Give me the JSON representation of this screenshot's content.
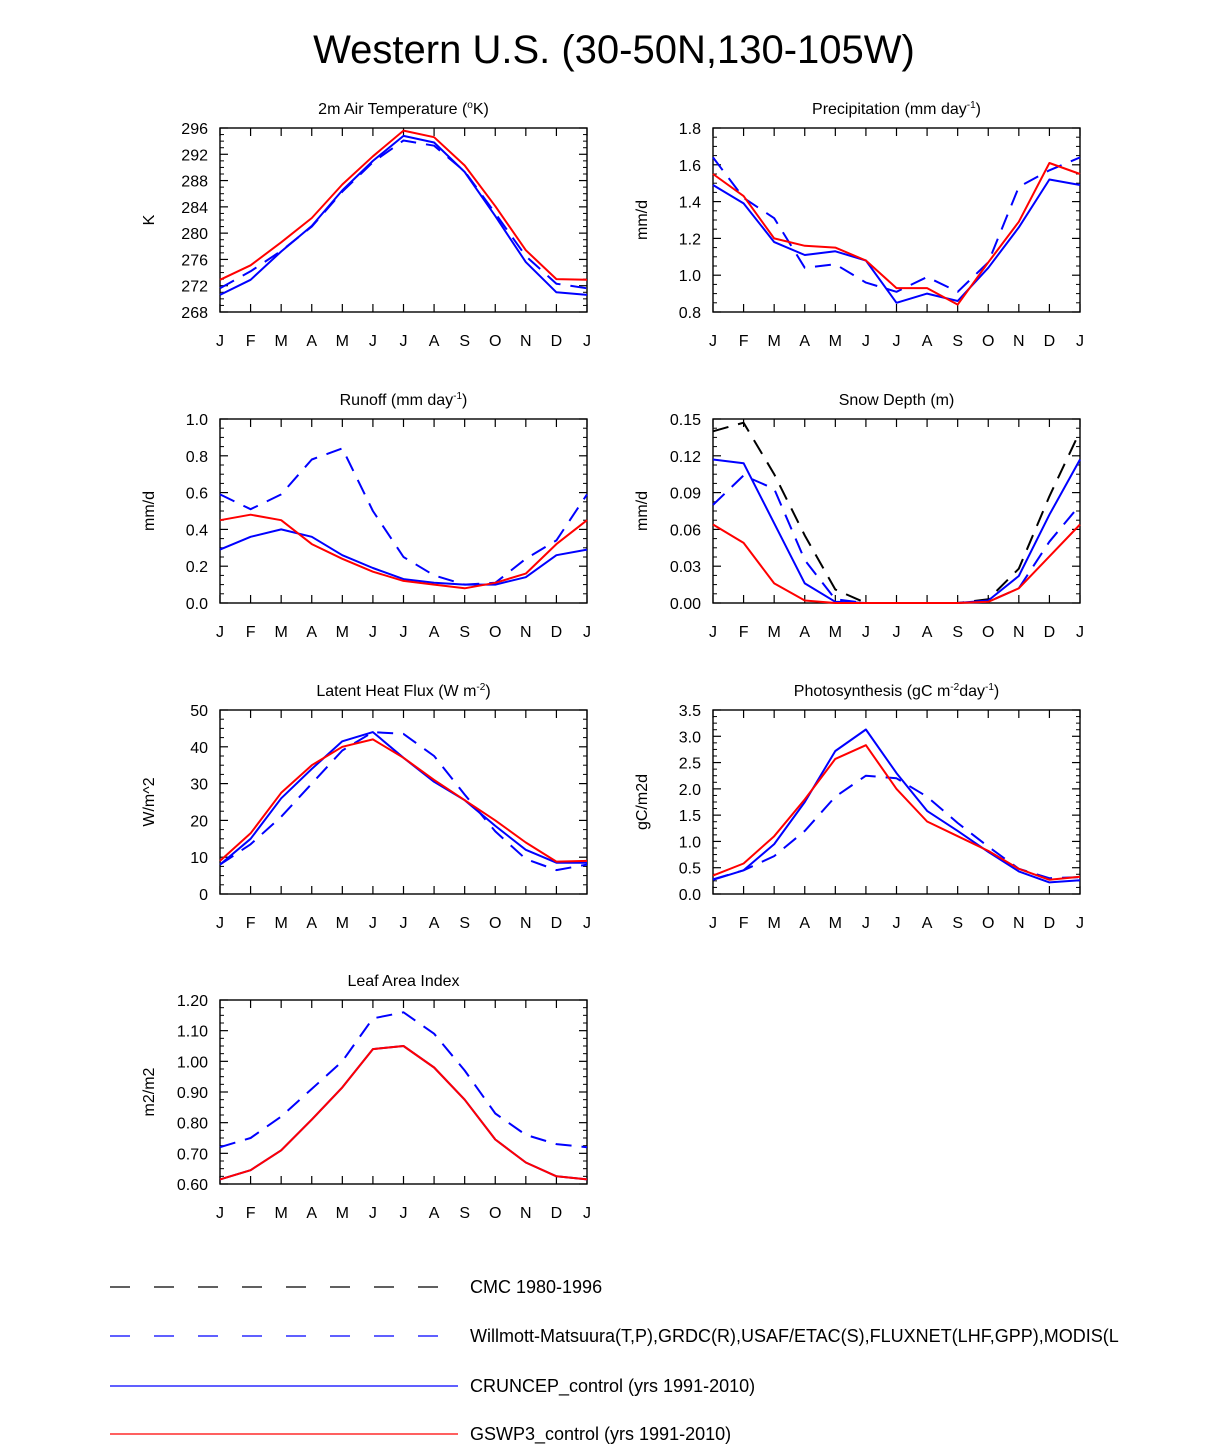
{
  "figure_title": "Western U.S. (30-50N,130-105W)",
  "months": [
    "J",
    "F",
    "M",
    "A",
    "M",
    "J",
    "J",
    "A",
    "S",
    "O",
    "N",
    "D",
    "J"
  ],
  "series_styles": {
    "cmc": {
      "color": "#000000",
      "dash": "16,10"
    },
    "obs": {
      "color": "#0000ff",
      "dash": "16,10"
    },
    "cruncep": {
      "color": "#0000ff",
      "dash": ""
    },
    "gswp3": {
      "color": "#ff0000",
      "dash": ""
    }
  },
  "legend": [
    {
      "key": "cmc",
      "label": "CMC 1980-1996"
    },
    {
      "key": "obs",
      "label": "Willmott-Matsuura(T,P),GRDC(R),USAF/ETAC(S),FLUXNET(LHF,GPP),MODIS(L"
    },
    {
      "key": "cruncep",
      "label": "CRUNCEP_control (yrs 1991-2010)"
    },
    {
      "key": "gswp3",
      "label": "GSWP3_control (yrs 1991-2010)"
    }
  ],
  "chart_data": [
    {
      "type": "line",
      "title": {
        "pre": "2m Air Temperature (",
        "sup": "o",
        "post": "K)"
      },
      "ylabel": "K",
      "ylim": [
        268,
        296
      ],
      "yticks": [
        "268",
        "272",
        "276",
        "280",
        "284",
        "288",
        "292",
        "296"
      ],
      "ytick_values": [
        268,
        272,
        276,
        280,
        284,
        288,
        292,
        296
      ],
      "categories": [
        "J",
        "F",
        "M",
        "A",
        "M",
        "J",
        "J",
        "A",
        "S",
        "O",
        "N",
        "D",
        "J"
      ],
      "series": [
        {
          "key": "obs",
          "name": "Willmott-Matsuura",
          "values": [
            271.6,
            274.2,
            277.3,
            281.0,
            286.3,
            290.8,
            294.1,
            293.3,
            289.4,
            283.0,
            276.5,
            272.3,
            271.6
          ]
        },
        {
          "key": "cruncep",
          "name": "CRUNCEP_control",
          "values": [
            270.6,
            272.9,
            277.2,
            281.1,
            286.5,
            291.0,
            294.8,
            293.8,
            289.3,
            282.6,
            275.6,
            271.0,
            270.6
          ]
        },
        {
          "key": "gswp3",
          "name": "GSWP3_control",
          "values": [
            272.9,
            275.1,
            278.6,
            282.3,
            287.4,
            291.7,
            295.6,
            294.6,
            290.3,
            284.1,
            277.4,
            273.0,
            272.9
          ]
        }
      ]
    },
    {
      "type": "line",
      "title": {
        "pre": "Precipitation (mm day",
        "sup": "-1",
        "post": ")"
      },
      "ylabel": "mm/d",
      "ylim": [
        0.8,
        1.8
      ],
      "yticks": [
        "0.8",
        "1.0",
        "1.2",
        "1.4",
        "1.6",
        "1.8"
      ],
      "ytick_values": [
        0.8,
        1.0,
        1.2,
        1.4,
        1.6,
        1.8
      ],
      "categories": [
        "J",
        "F",
        "M",
        "A",
        "M",
        "J",
        "J",
        "A",
        "S",
        "O",
        "N",
        "D",
        "J"
      ],
      "series": [
        {
          "key": "obs",
          "name": "Willmott-Matsuura",
          "values": [
            1.64,
            1.42,
            1.31,
            1.04,
            1.06,
            0.96,
            0.91,
            0.99,
            0.91,
            1.07,
            1.48,
            1.57,
            1.64
          ]
        },
        {
          "key": "cruncep",
          "name": "CRUNCEP_control",
          "values": [
            1.49,
            1.39,
            1.18,
            1.11,
            1.13,
            1.08,
            0.85,
            0.9,
            0.86,
            1.04,
            1.26,
            1.52,
            1.49
          ]
        },
        {
          "key": "gswp3",
          "name": "GSWP3_control",
          "values": [
            1.55,
            1.43,
            1.2,
            1.16,
            1.15,
            1.08,
            0.93,
            0.93,
            0.84,
            1.07,
            1.29,
            1.61,
            1.55
          ]
        }
      ]
    },
    {
      "type": "line",
      "title": {
        "pre": "Runoff (mm day",
        "sup": "-1",
        "post": ")"
      },
      "ylabel": "mm/d",
      "ylim": [
        0.0,
        1.0
      ],
      "yticks": [
        "0.0",
        "0.2",
        "0.4",
        "0.6",
        "0.8",
        "1.0"
      ],
      "ytick_values": [
        0,
        0.2,
        0.4,
        0.6,
        0.8,
        1.0
      ],
      "categories": [
        "J",
        "F",
        "M",
        "A",
        "M",
        "J",
        "J",
        "A",
        "S",
        "O",
        "N",
        "D",
        "J"
      ],
      "series": [
        {
          "key": "obs",
          "name": "GRDC",
          "values": [
            0.59,
            0.51,
            0.59,
            0.78,
            0.84,
            0.5,
            0.25,
            0.15,
            0.1,
            0.11,
            0.24,
            0.34,
            0.59
          ]
        },
        {
          "key": "cruncep",
          "name": "CRUNCEP_control",
          "values": [
            0.29,
            0.36,
            0.4,
            0.36,
            0.26,
            0.19,
            0.13,
            0.11,
            0.1,
            0.1,
            0.14,
            0.26,
            0.29
          ]
        },
        {
          "key": "gswp3",
          "name": "GSWP3_control",
          "values": [
            0.45,
            0.48,
            0.45,
            0.32,
            0.24,
            0.17,
            0.12,
            0.1,
            0.08,
            0.11,
            0.16,
            0.32,
            0.45
          ]
        }
      ]
    },
    {
      "type": "line",
      "title": {
        "pre": "Snow Depth (m)",
        "sup": "",
        "post": ""
      },
      "ylabel": "mm/d",
      "ylim": [
        0.0,
        0.15
      ],
      "yticks": [
        "0.00",
        "0.03",
        "0.06",
        "0.09",
        "0.12",
        "0.15"
      ],
      "ytick_values": [
        0,
        0.03,
        0.06,
        0.09,
        0.12,
        0.15
      ],
      "categories": [
        "J",
        "F",
        "M",
        "A",
        "M",
        "J",
        "J",
        "A",
        "S",
        "O",
        "N",
        "D",
        "J"
      ],
      "series": [
        {
          "key": "cmc",
          "name": "CMC",
          "values": [
            0.14,
            0.147,
            0.105,
            0.055,
            0.011,
            0.0,
            0.0,
            0.0,
            0.0,
            0.003,
            0.028,
            0.087,
            0.14
          ]
        },
        {
          "key": "obs",
          "name": "USAF/ETAC",
          "values": [
            0.08,
            0.104,
            0.093,
            0.035,
            0.003,
            0.0,
            0.0,
            0.0,
            0.0,
            0.001,
            0.012,
            0.05,
            0.08
          ]
        },
        {
          "key": "cruncep",
          "name": "CRUNCEP_control",
          "values": [
            0.117,
            0.114,
            0.065,
            0.016,
            0.001,
            0.0,
            0.0,
            0.0,
            0.0,
            0.002,
            0.022,
            0.072,
            0.117
          ]
        },
        {
          "key": "gswp3",
          "name": "GSWP3_control",
          "values": [
            0.064,
            0.049,
            0.016,
            0.002,
            0.0,
            0.0,
            0.0,
            0.0,
            0.0,
            0.001,
            0.012,
            0.038,
            0.064
          ]
        }
      ]
    },
    {
      "type": "line",
      "title": {
        "pre": "Latent Heat Flux (W m",
        "sup": "-2",
        "post": ")"
      },
      "ylabel": "W/m^2",
      "ylim": [
        0,
        50
      ],
      "yticks": [
        "0",
        "10",
        "20",
        "30",
        "40",
        "50"
      ],
      "ytick_values": [
        0,
        10,
        20,
        30,
        40,
        50
      ],
      "categories": [
        "J",
        "F",
        "M",
        "A",
        "M",
        "J",
        "J",
        "A",
        "S",
        "O",
        "N",
        "D",
        "J"
      ],
      "series": [
        {
          "key": "obs",
          "name": "FLUXNET",
          "values": [
            8.0,
            13.5,
            21.0,
            30.0,
            39.0,
            44.0,
            43.5,
            37.5,
            27.0,
            17.0,
            9.5,
            6.5,
            8.0
          ]
        },
        {
          "key": "cruncep",
          "name": "CRUNCEP_control",
          "values": [
            8.0,
            15.0,
            26.0,
            34.0,
            41.5,
            44.0,
            37.0,
            30.5,
            25.5,
            18.5,
            12.0,
            8.5,
            8.5
          ]
        },
        {
          "key": "gswp3",
          "name": "GSWP3_control",
          "values": [
            9.0,
            16.5,
            27.5,
            35.0,
            40.0,
            42.0,
            37.0,
            31.0,
            25.5,
            20.0,
            14.0,
            8.8,
            9.0
          ]
        }
      ]
    },
    {
      "type": "line",
      "title": {
        "pre": "Photosynthesis (gC m",
        "sup": "-2",
        "mid": "day",
        "sup2": "-1",
        "post": ")"
      },
      "ylabel": "gC/m2d",
      "ylim": [
        0.0,
        3.5
      ],
      "yticks": [
        "0.0",
        "0.5",
        "1.0",
        "1.5",
        "2.0",
        "2.5",
        "3.0",
        "3.5"
      ],
      "ytick_values": [
        0,
        0.5,
        1.0,
        1.5,
        2.0,
        2.5,
        3.0,
        3.5
      ],
      "categories": [
        "J",
        "F",
        "M",
        "A",
        "M",
        "J",
        "J",
        "A",
        "S",
        "O",
        "N",
        "D",
        "J"
      ],
      "series": [
        {
          "key": "obs",
          "name": "FLUXNET",
          "values": [
            0.28,
            0.45,
            0.72,
            1.2,
            1.85,
            2.25,
            2.2,
            1.85,
            1.35,
            0.9,
            0.48,
            0.3,
            0.32
          ]
        },
        {
          "key": "cruncep",
          "name": "CRUNCEP_control",
          "values": [
            0.27,
            0.45,
            0.95,
            1.75,
            2.72,
            3.13,
            2.3,
            1.58,
            1.2,
            0.8,
            0.43,
            0.22,
            0.26
          ]
        },
        {
          "key": "gswp3",
          "name": "GSWP3_control",
          "values": [
            0.35,
            0.58,
            1.1,
            1.8,
            2.57,
            2.83,
            2.0,
            1.38,
            1.1,
            0.82,
            0.48,
            0.27,
            0.33
          ]
        }
      ]
    },
    {
      "type": "line",
      "title": {
        "pre": "Leaf Area Index",
        "sup": "",
        "post": ""
      },
      "ylabel": "m2/m2",
      "ylim": [
        0.6,
        1.2
      ],
      "yticks": [
        "0.60",
        "0.70",
        "0.80",
        "0.90",
        "1.00",
        "1.10",
        "1.20"
      ],
      "ytick_values": [
        0.6,
        0.7,
        0.8,
        0.9,
        1.0,
        1.1,
        1.2
      ],
      "categories": [
        "J",
        "F",
        "M",
        "A",
        "M",
        "J",
        "J",
        "A",
        "S",
        "O",
        "N",
        "D",
        "J"
      ],
      "series": [
        {
          "key": "obs",
          "name": "MODIS",
          "values": [
            0.72,
            0.75,
            0.82,
            0.91,
            1.0,
            1.14,
            1.16,
            1.09,
            0.97,
            0.83,
            0.76,
            0.73,
            0.72
          ]
        },
        {
          "key": "cruncep",
          "name": "CRUNCEP_control",
          "values": [
            0.615,
            0.645,
            0.71,
            0.81,
            0.915,
            1.04,
            1.05,
            0.98,
            0.875,
            0.745,
            0.67,
            0.625,
            0.615
          ]
        },
        {
          "key": "gswp3",
          "name": "GSWP3_control",
          "values": [
            0.615,
            0.645,
            0.71,
            0.81,
            0.915,
            1.04,
            1.05,
            0.98,
            0.875,
            0.745,
            0.67,
            0.625,
            0.615
          ]
        }
      ]
    }
  ]
}
